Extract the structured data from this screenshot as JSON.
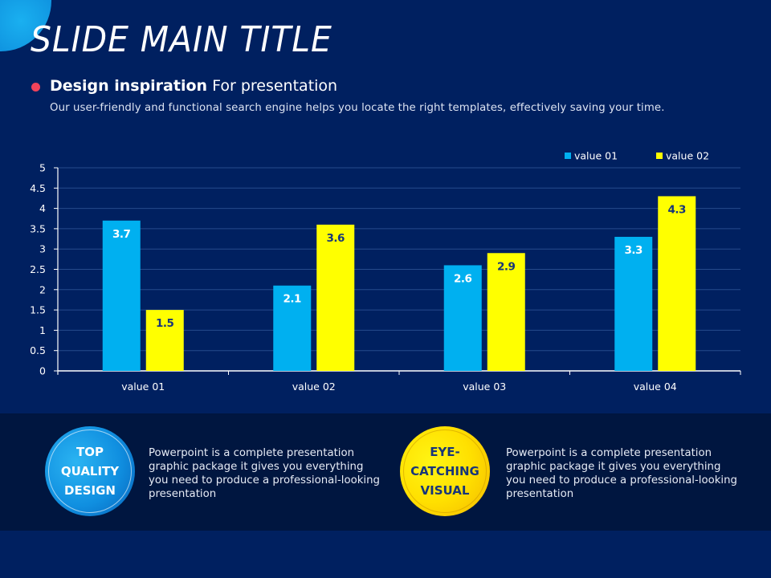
{
  "slide": {
    "title": "SLIDE MAIN TITLE",
    "subhead_bold": "Design inspiration",
    "subhead_rest": " For presentation",
    "description": "Our user-friendly and functional search engine helps you locate the right templates, effectively saving your time.",
    "colors": {
      "background": "#002060",
      "band": "#001640",
      "bullet": "#f0435a",
      "series1": "#00b0f0",
      "series2": "#ffff00"
    }
  },
  "chart_data": {
    "type": "bar",
    "title": "",
    "xlabel": "",
    "ylabel": "",
    "categories": [
      "value 01",
      "value 02",
      "value 03",
      "value 04"
    ],
    "series": [
      {
        "name": "value 01",
        "color": "#00b0f0",
        "values": [
          3.7,
          2.1,
          2.6,
          3.3
        ]
      },
      {
        "name": "value 02",
        "color": "#ffff00",
        "values": [
          1.5,
          3.6,
          2.9,
          4.3
        ]
      }
    ],
    "ylim": [
      0,
      5
    ],
    "yticks": [
      0,
      0.5,
      1,
      1.5,
      2,
      2.5,
      3,
      3.5,
      4,
      4.5,
      5
    ],
    "grid": true,
    "legend": "top-right",
    "data_labels": true
  },
  "features": [
    {
      "badge_lines": [
        "TOP",
        "QUALITY",
        "DESIGN"
      ],
      "text": "Powerpoint is a complete presentation graphic package it gives you everything you need to produce a professional-looking presentation"
    },
    {
      "badge_lines": [
        "EYE-",
        "CATCHING",
        "VISUAL"
      ],
      "text": "Powerpoint is a complete presentation graphic package it gives you everything you need to produce a professional-looking presentation"
    }
  ]
}
